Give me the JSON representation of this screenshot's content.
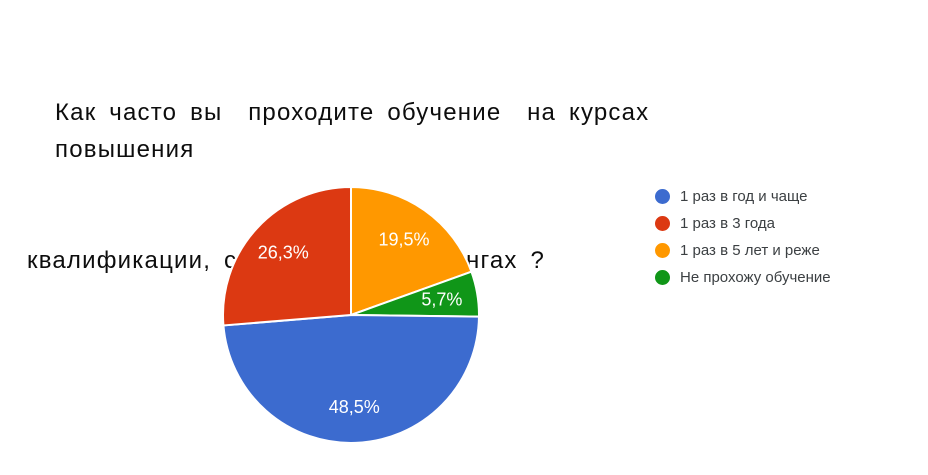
{
  "title": {
    "line1": "Как часто вы  проходите обучение  на курсах  повышения",
    "line2": "квалификации, семинарах и тренингах ?"
  },
  "chart_data": {
    "type": "pie",
    "title": "Как часто вы проходите обучение на курсах повышения квалификации, семинарах и тренингах?",
    "legend_position": "right",
    "start_angle": "12-oclock",
    "direction": "clockwise",
    "slices": [
      {
        "label": "1 раз в 5 лет и реже",
        "value": 19.5,
        "display": "19,5%",
        "color": "#ff9800"
      },
      {
        "label": "Не прохожу обучение",
        "value": 5.7,
        "display": "5,7%",
        "color": "#109618"
      },
      {
        "label": "1 раз в год и чаще",
        "value": 48.5,
        "display": "48,5%",
        "color": "#3c6bcf"
      },
      {
        "label": "1 раз в 3 года",
        "value": 26.3,
        "display": "26,3%",
        "color": "#dc3912"
      }
    ],
    "legend": [
      {
        "label": "1 раз в год и чаще",
        "color": "#3c6bcf"
      },
      {
        "label": "1 раз в 3 года",
        "color": "#dc3912"
      },
      {
        "label": "1 раз в 5 лет и реже",
        "color": "#ff9800"
      },
      {
        "label": "Не прохожу обучение",
        "color": "#109618"
      }
    ]
  },
  "colors": {
    "background": "#ffffff",
    "title_text": "#0d0d0d",
    "legend_text": "#3c4043",
    "slice_label_text": "#ffffff",
    "slice_separator": "#ffffff"
  }
}
